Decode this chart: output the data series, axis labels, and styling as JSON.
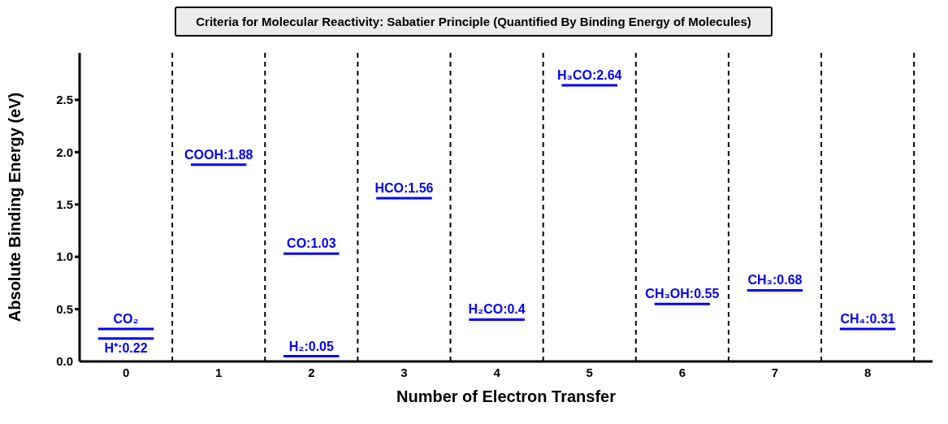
{
  "chart_data": {
    "type": "line",
    "title": "Criteria for Molecular Reactivity: Sabatier Principle (Quantified By Binding Energy of Molecules)",
    "xlabel": "Number of Electron Transfer",
    "ylabel": "Absolute Binding Energy (eV)",
    "series": [
      {
        "color": "#0000ff",
        "x": [
          -0.3,
          0,
          0.3
        ],
        "values": [
          0.31,
          0.31,
          0.31
        ],
        "value_labels": [
          null,
          "CO₂",
          null
        ]
      },
      {
        "color": "#0000ff",
        "x": [
          -0.3,
          0,
          0.3
        ],
        "values": [
          0.22,
          0.22,
          0.22
        ],
        "value_labels": [
          null,
          "H⁺:0.22",
          null
        ]
      },
      {
        "color": "#0000ff",
        "x": [
          0.7,
          1,
          1.3
        ],
        "values": [
          1.88,
          1.88,
          1.88
        ],
        "value_labels": [
          null,
          "COOH:1.88",
          null
        ]
      },
      {
        "color": "#0000ff",
        "x": [
          1.7,
          2,
          2.3
        ],
        "values": [
          1.03,
          1.03,
          1.03
        ],
        "value_labels": [
          null,
          "CO:1.03",
          null
        ]
      },
      {
        "color": "#0000ff",
        "x": [
          1.7,
          2,
          2.3
        ],
        "values": [
          0.05,
          0.05,
          0.05
        ],
        "value_labels": [
          null,
          "H₂:0.05",
          null
        ]
      },
      {
        "color": "#0000ff",
        "x": [
          2.7,
          3,
          3.3
        ],
        "values": [
          1.56,
          1.56,
          1.56
        ],
        "value_labels": [
          null,
          "HCO:1.56",
          null
        ]
      },
      {
        "color": "#0000ff",
        "x": [
          3.7,
          4,
          4.3
        ],
        "values": [
          0.4,
          0.4,
          0.4
        ],
        "value_labels": [
          null,
          "H₂CO:0.4",
          null
        ]
      },
      {
        "color": "#0000ff",
        "x": [
          4.7,
          5,
          5.3
        ],
        "values": [
          2.64,
          2.64,
          2.64
        ],
        "value_labels": [
          null,
          "H₃CO:2.64",
          null
        ]
      },
      {
        "color": "#0000ff",
        "x": [
          5.7,
          6,
          6.3
        ],
        "values": [
          0.55,
          0.55,
          0.55
        ],
        "value_labels": [
          null,
          "CH₃OH:0.55",
          null
        ]
      },
      {
        "color": "#0000ff",
        "x": [
          6.7,
          7,
          7.3
        ],
        "values": [
          0.68,
          0.68,
          0.68
        ],
        "value_labels": [
          null,
          "CH₃:0.68",
          null
        ]
      },
      {
        "color": "#0000ff",
        "x": [
          7.7,
          8,
          8.3
        ],
        "values": [
          0.31,
          0.31,
          0.31
        ],
        "value_labels": [
          null,
          "CH₄:0.31",
          null
        ]
      }
    ],
    "xlim": [
      -0.5,
      8.7
    ],
    "xticks": [
      0,
      1,
      2,
      3,
      4,
      5,
      6,
      7,
      8
    ],
    "ylim": [
      0,
      2.95
    ],
    "yticks": [
      {
        "value": 0,
        "label": "0.0"
      },
      {
        "value": 0.5,
        "label": "0.5"
      },
      {
        "value": 1,
        "label": "1.0"
      },
      {
        "value": 1.5,
        "label": "1.5"
      },
      {
        "value": 2,
        "label": "2.0"
      },
      {
        "value": 2.5,
        "label": "2.5"
      }
    ],
    "grid": false,
    "legend": false,
    "marker": "none",
    "line_style": "solid",
    "ref_lines": [
      {
        "axis": "x",
        "value": 0.5,
        "color": "#000000",
        "line_style": "dashed"
      },
      {
        "axis": "x",
        "value": 1.5,
        "color": "#000000",
        "line_style": "dashed"
      },
      {
        "axis": "x",
        "value": 2.5,
        "color": "#000000",
        "line_style": "dashed"
      },
      {
        "axis": "x",
        "value": 3.5,
        "color": "#000000",
        "line_style": "dashed"
      },
      {
        "axis": "x",
        "value": 4.5,
        "color": "#000000",
        "line_style": "dashed"
      },
      {
        "axis": "x",
        "value": 5.5,
        "color": "#000000",
        "line_style": "dashed"
      },
      {
        "axis": "x",
        "value": 6.5,
        "color": "#000000",
        "line_style": "dashed"
      },
      {
        "axis": "x",
        "value": 7.5,
        "color": "#000000",
        "line_style": "dashed"
      },
      {
        "axis": "x",
        "value": 8.5,
        "color": "#000000",
        "line_style": "dashed"
      }
    ]
  }
}
